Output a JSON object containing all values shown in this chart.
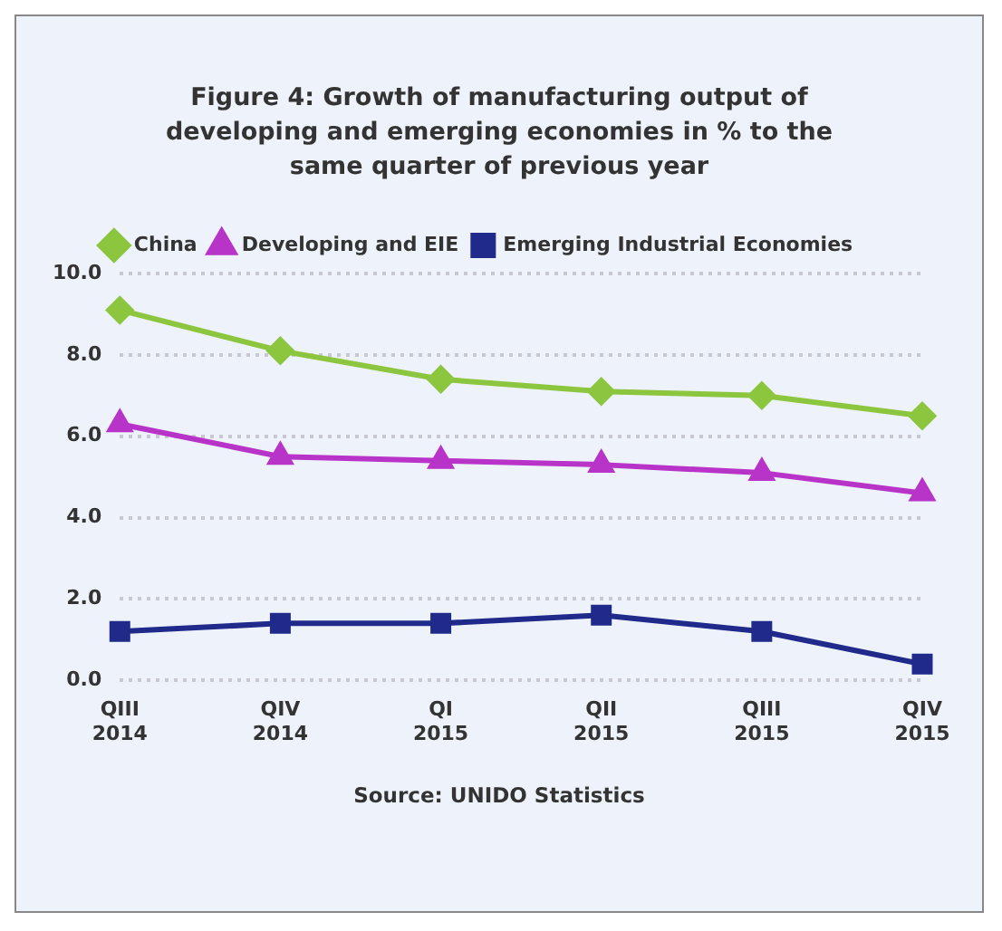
{
  "chart_data": {
    "type": "line",
    "title": "Figure 4: Growth of manufacturing output of developing and emerging economies in % to the same quarter of previous year",
    "categories": [
      "QIII 2014",
      "QIV 2014",
      "QI 2015",
      "QII 2015",
      "QIII 2015",
      "QIV 2015"
    ],
    "series": [
      {
        "name": "China",
        "color": "#8cc63f",
        "marker": "diamond",
        "values": [
          9.1,
          8.1,
          7.4,
          7.1,
          7.0,
          6.5
        ]
      },
      {
        "name": "Developing and EIE",
        "color": "#b833c8",
        "marker": "triangle",
        "values": [
          6.3,
          5.5,
          5.4,
          5.3,
          5.1,
          4.6
        ]
      },
      {
        "name": "Emerging Industrial Economies",
        "color": "#1f2a8a",
        "marker": "square",
        "values": [
          1.2,
          1.4,
          1.4,
          1.6,
          1.2,
          0.4
        ]
      }
    ],
    "ylim": [
      0,
      10
    ],
    "yticks": [
      {
        "value": 0,
        "label": "0.0"
      },
      {
        "value": 2,
        "label": "2.0"
      },
      {
        "value": 4,
        "label": "4.0"
      },
      {
        "value": 6,
        "label": "6.0"
      },
      {
        "value": 8,
        "label": "8.0"
      },
      {
        "value": 10,
        "label": "10.0"
      }
    ],
    "grid": "y",
    "legend": "top",
    "line_style": "solid",
    "annotations": [
      "Source: UNIDO Statistics"
    ]
  }
}
